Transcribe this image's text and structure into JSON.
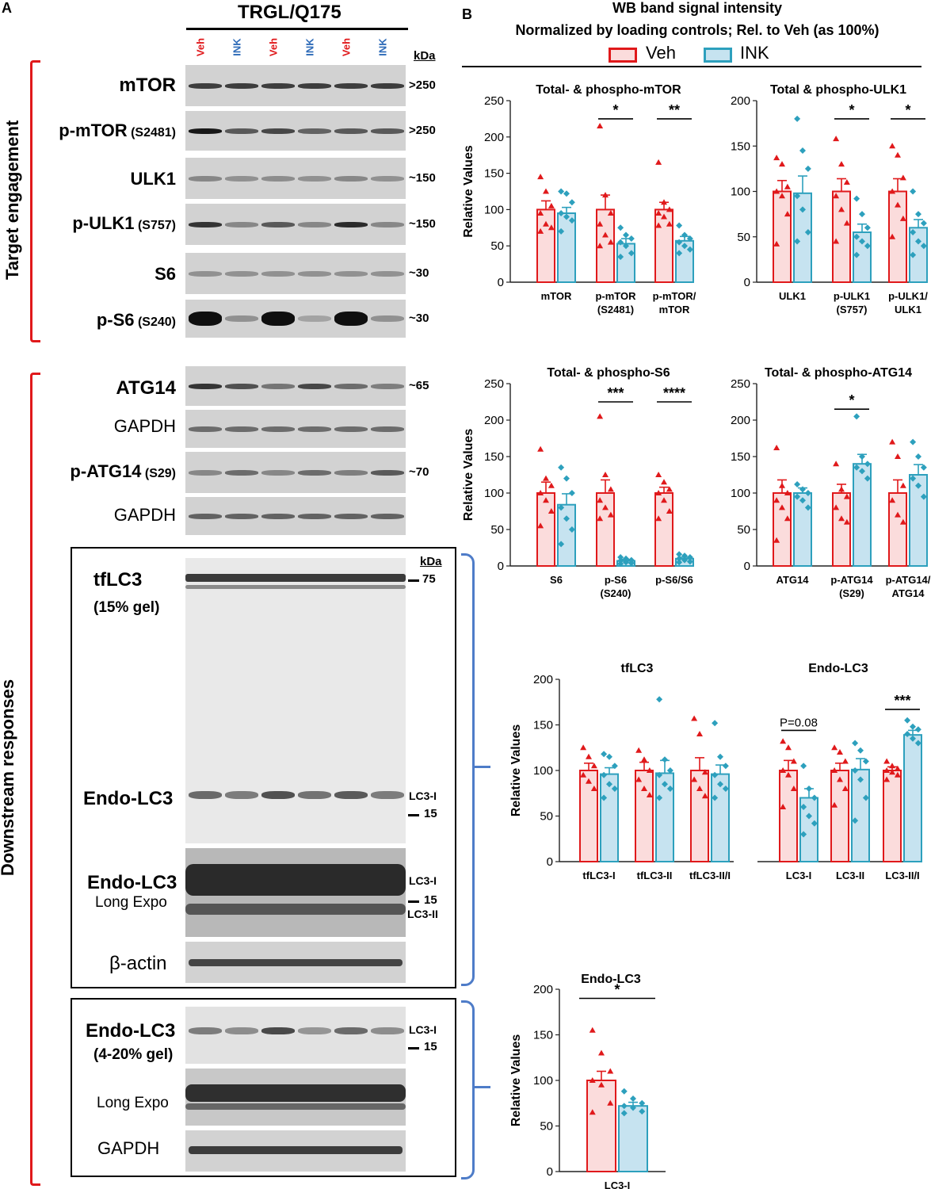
{
  "panel_a": {
    "letter": "A",
    "group_title": "TRGL/Q175",
    "lanes": [
      "Veh",
      "INK",
      "Veh",
      "INK",
      "Veh",
      "INK"
    ],
    "kda_header": "kDa",
    "section_top": "Target engagement",
    "section_bottom": "Downstream responses",
    "rows": {
      "mtor": {
        "name": "mTOR",
        "sub": "",
        "mw": ">250"
      },
      "pmtor": {
        "name": "p-mTOR",
        "sub": "(S2481)",
        "mw": ">250"
      },
      "ulk1": {
        "name": "ULK1",
        "sub": "",
        "mw": "~150"
      },
      "pulk1": {
        "name": "p-ULK1",
        "sub": "(S757)",
        "mw": "~150"
      },
      "s6": {
        "name": "S6",
        "sub": "",
        "mw": "~30"
      },
      "ps6": {
        "name": "p-S6",
        "sub": "(S240)",
        "mw": "~30"
      },
      "atg14": {
        "name": "ATG14",
        "sub": "",
        "mw": "~65"
      },
      "gapdh1": {
        "name": "GAPDH",
        "sub": "",
        "mw": ""
      },
      "patg14": {
        "name": "p-ATG14",
        "sub": "(S29)",
        "mw": "~70"
      },
      "gapdh2": {
        "name": "GAPDH",
        "sub": "",
        "mw": ""
      }
    },
    "box1": {
      "kda": "kDa",
      "tflc3": "tfLC3",
      "gel15": "(15% gel)",
      "mw75": "75",
      "endo": "Endo-LC3",
      "lc3i": "LC3-I",
      "mw15": "15",
      "endo_long": "Endo-LC3",
      "long_expo": "Long Expo",
      "lc3i_b": "LC3-I",
      "mw15_b": "15",
      "lc3ii": "LC3-II",
      "actin": "β-actin"
    },
    "box2": {
      "endo": "Endo-LC3",
      "gel420": "(4-20% gel)",
      "lc3i": "LC3-I",
      "mw15": "15",
      "long_expo": "Long Expo",
      "gapdh": "GAPDH"
    }
  },
  "panel_b": {
    "letter": "B",
    "title_line1": "WB band signal intensity",
    "title_line2": "Normalized by loading controls; Rel. to Veh (as 100%)",
    "legend": [
      "Veh",
      "INK"
    ]
  },
  "colors": {
    "veh_stroke": "#e0191b",
    "veh_fill": "#fbdcdc",
    "ink_stroke": "#2da0bd",
    "ink_fill": "#c6e3f0",
    "bracket_red": "#e0191b",
    "bracket_blue": "#4e7cc8",
    "veh_label": "#e0191b",
    "ink_label": "#2e6bb8"
  },
  "chart_data": [
    {
      "type": "bar",
      "title": "Total- & phospho-mTOR",
      "ylabel": "Relative Values",
      "ylim": [
        0,
        250
      ],
      "yticks": [
        0,
        50,
        100,
        150,
        200,
        250
      ],
      "categories": [
        "mTOR",
        "p-mTOR\n(S2481)",
        "p-mTOR/\nmTOR"
      ],
      "series": [
        {
          "name": "Veh",
          "values": [
            100,
            100,
            100
          ],
          "sem": [
            12,
            20,
            10
          ],
          "points": [
            [
              145,
              125,
              105,
              95,
              80,
              75,
              70
            ],
            [
              215,
              120,
              95,
              80,
              65,
              55,
              50
            ],
            [
              165,
              110,
              100,
              95,
              90,
              80,
              78
            ]
          ]
        },
        {
          "name": "INK",
          "values": [
            95,
            53,
            57
          ],
          "sem": [
            8,
            7,
            6
          ],
          "points": [
            [
              125,
              122,
              110,
              95,
              90,
              85,
              70
            ],
            [
              75,
              65,
              60,
              55,
              50,
              40,
              35
            ],
            [
              78,
              65,
              60,
              55,
              50,
              45,
              40
            ]
          ]
        }
      ],
      "significance": [
        {
          "category": 1,
          "label": "*"
        },
        {
          "category": 2,
          "label": "**"
        }
      ]
    },
    {
      "type": "bar",
      "title": "Total & phospho-ULK1",
      "ylabel": "",
      "ylim": [
        0,
        200
      ],
      "yticks": [
        0,
        50,
        100,
        150,
        200
      ],
      "categories": [
        "ULK1",
        "p-ULK1\n(S757)",
        "p-ULK1/\nULK1"
      ],
      "series": [
        {
          "name": "Veh",
          "values": [
            100,
            100,
            100
          ],
          "sem": [
            12,
            14,
            14
          ],
          "points": [
            [
              137,
              130,
              105,
              100,
              95,
              75,
              42
            ],
            [
              158,
              130,
              110,
              95,
              80,
              65,
              45
            ],
            [
              150,
              140,
              115,
              100,
              85,
              70,
              50
            ]
          ]
        },
        {
          "name": "INK",
          "values": [
            98,
            55,
            60
          ],
          "sem": [
            19,
            9,
            9
          ],
          "points": [
            [
              180,
              145,
              125,
              95,
              80,
              55,
              45
            ],
            [
              92,
              75,
              60,
              50,
              45,
              40,
              30
            ],
            [
              100,
              75,
              65,
              55,
              45,
              40,
              30
            ]
          ]
        }
      ],
      "significance": [
        {
          "category": 1,
          "label": "*"
        },
        {
          "category": 2,
          "label": "*"
        }
      ]
    },
    {
      "type": "bar",
      "title": "Total- & phospho-S6",
      "ylabel": "Relative Values",
      "ylim": [
        0,
        250
      ],
      "yticks": [
        0,
        50,
        100,
        150,
        200,
        250
      ],
      "categories": [
        "S6",
        "p-S6\n(S240)",
        "p-S6/S6"
      ],
      "series": [
        {
          "name": "Veh",
          "values": [
            100,
            100,
            100
          ],
          "sem": [
            15,
            18,
            8
          ],
          "points": [
            [
              160,
              120,
              110,
              100,
              90,
              75,
              55
            ],
            [
              205,
              125,
              105,
              90,
              80,
              70,
              65
            ],
            [
              125,
              115,
              105,
              100,
              90,
              75,
              65
            ]
          ]
        },
        {
          "name": "INK",
          "values": [
            84,
            7,
            10
          ],
          "sem": [
            15,
            2,
            2
          ],
          "points": [
            [
              135,
              120,
              100,
              80,
              65,
              50,
              30
            ],
            [
              12,
              10,
              8,
              7,
              5,
              4,
              3
            ],
            [
              16,
              14,
              12,
              10,
              8,
              6,
              5
            ]
          ]
        }
      ],
      "significance": [
        {
          "category": 1,
          "label": "***"
        },
        {
          "category": 2,
          "label": "****"
        }
      ]
    },
    {
      "type": "bar",
      "title": "Total- & phospho-ATG14",
      "ylabel": "",
      "ylim": [
        0,
        250
      ],
      "yticks": [
        0,
        50,
        100,
        150,
        200,
        250
      ],
      "categories": [
        "ATG14",
        "p-ATG14\n(S29)",
        "p-ATG14/\nATG14"
      ],
      "series": [
        {
          "name": "Veh",
          "values": [
            100,
            100,
            100
          ],
          "sem": [
            18,
            12,
            18
          ],
          "points": [
            [
              162,
              110,
              100,
              90,
              80,
              65,
              35
            ],
            [
              140,
              105,
              95,
              80,
              65,
              60
            ],
            [
              170,
              150,
              110,
              90,
              70,
              60
            ]
          ]
        },
        {
          "name": "INK",
          "values": [
            100,
            140,
            125
          ],
          "sem": [
            7,
            13,
            14
          ],
          "points": [
            [
              112,
              105,
              100,
              95,
              90,
              80
            ],
            [
              205,
              150,
              140,
              135,
              130,
              120
            ],
            [
              170,
              150,
              135,
              120,
              110,
              95
            ]
          ]
        }
      ],
      "significance": [
        {
          "category": 1,
          "label": "*"
        }
      ]
    },
    {
      "type": "bar",
      "title": "tfLC3",
      "title2": "Endo-LC3",
      "ylabel": "Relative Values",
      "ylim": [
        0,
        200
      ],
      "yticks": [
        0,
        50,
        100,
        150,
        200
      ],
      "categories": [
        "tfLC3-I",
        "tfLC3-II",
        "tfLC3-II/I",
        "LC3-I",
        "LC3-II",
        "LC3-II/I"
      ],
      "series": [
        {
          "name": "Veh",
          "values": [
            100,
            100,
            100,
            100,
            100,
            100
          ],
          "sem": [
            8,
            9,
            14,
            11,
            8,
            4
          ],
          "points": [
            [
              125,
              115,
              105,
              95,
              88,
              80
            ],
            [
              122,
              112,
              100,
              90,
              80,
              73
            ],
            [
              157,
              140,
              98,
              90,
              80,
              72
            ],
            [
              132,
              125,
              110,
              100,
              95,
              80,
              60
            ],
            [
              125,
              120,
              110,
              100,
              90,
              80,
              62
            ],
            [
              110,
              105,
              102,
              100,
              98,
              95,
              90
            ]
          ]
        },
        {
          "name": "INK",
          "values": [
            96,
            97,
            96,
            70,
            101,
            139
          ],
          "sem": [
            7,
            14,
            10,
            10,
            12,
            5
          ],
          "points": [
            [
              118,
              115,
              105,
              95,
              85,
              80,
              70
            ],
            [
              178,
              112,
              100,
              95,
              85,
              80,
              70
            ],
            [
              152,
              115,
              105,
              95,
              85,
              80,
              70
            ],
            [
              105,
              80,
              70,
              60,
              50,
              42,
              30
            ],
            [
              130,
              122,
              110,
              100,
              90,
              70,
              45
            ],
            [
              155,
              148,
              145,
              140,
              135,
              130
            ]
          ]
        }
      ],
      "significance": [
        {
          "category": 3,
          "label": "P=0.08"
        },
        {
          "category": 5,
          "label": "***"
        }
      ]
    },
    {
      "type": "bar",
      "title": "Endo-LC3",
      "ylabel": "Relative Values",
      "ylim": [
        0,
        200
      ],
      "yticks": [
        0,
        50,
        100,
        150,
        200
      ],
      "categories": [
        "LC3-I"
      ],
      "series": [
        {
          "name": "Veh",
          "values": [
            100
          ],
          "sem": [
            10
          ],
          "points": [
            [
              155,
              130,
              110,
              100,
              95,
              75,
              65
            ]
          ]
        },
        {
          "name": "INK",
          "values": [
            72
          ],
          "sem": [
            4
          ],
          "points": [
            [
              88,
              80,
              75,
              72,
              70,
              66,
              64
            ]
          ]
        }
      ],
      "significance": [
        {
          "category": 0,
          "label": "*",
          "span": "between"
        }
      ]
    }
  ]
}
